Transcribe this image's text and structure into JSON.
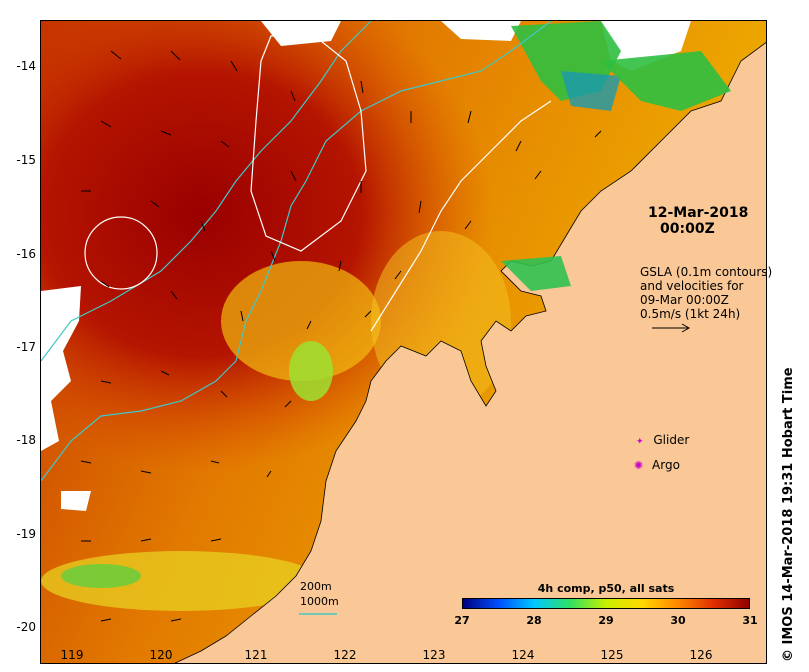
{
  "stamp": {
    "date": "12-Mar-2018",
    "time": "00:00Z"
  },
  "gsla_note": {
    "line1": "GSLA (0.1m contours)",
    "line2": "and velocities for",
    "line3": "09-Mar 00:00Z",
    "line4": "0.5m/s (1kt 24h)"
  },
  "legend": {
    "glider": "Glider",
    "argo": "Argo",
    "glider_color": "#cc00cc",
    "argo_color": "#cc00cc"
  },
  "colorbar": {
    "title": "4h comp, p50, all sats",
    "ticks": [
      "27",
      "28",
      "29",
      "30",
      "31"
    ],
    "colors": [
      "#00007f",
      "#0050ff",
      "#00c8ff",
      "#30e060",
      "#c8f000",
      "#ffd800",
      "#ff8800",
      "#e03000",
      "#8f0000"
    ]
  },
  "scale": {
    "depth_200": "200m",
    "depth_1000": "1000m"
  },
  "axes": {
    "lat": [
      "-14",
      "-15",
      "-16",
      "-17",
      "-18",
      "-19",
      "-20"
    ],
    "lon": [
      "119",
      "120",
      "121",
      "122",
      "123",
      "124",
      "125",
      "126"
    ]
  },
  "timestamp": "© IMOS 14-Mar-2018 19:31 Hobart Time",
  "colors": {
    "land": "#f9c896",
    "isobath_1000": "#40c8c8",
    "sla_contour": "#ffffff"
  }
}
